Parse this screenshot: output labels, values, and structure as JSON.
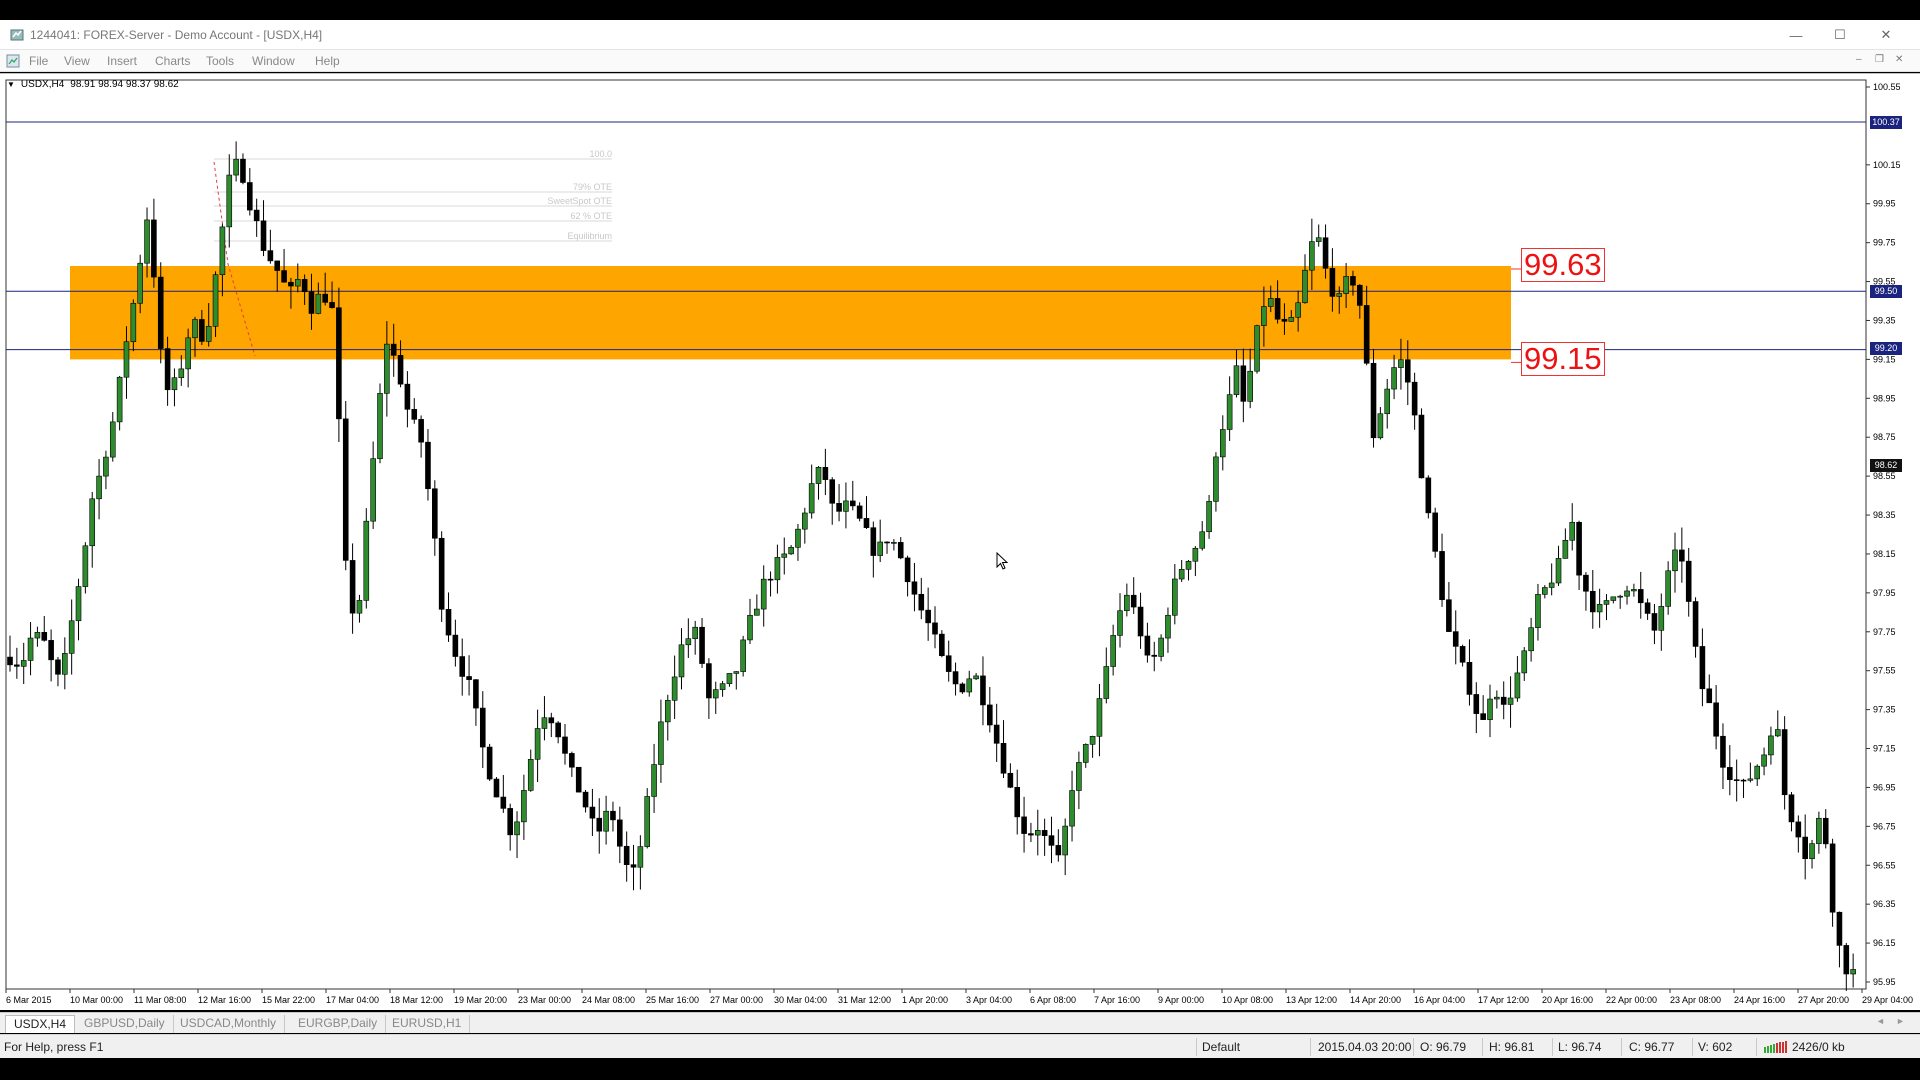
{
  "window": {
    "title": "1244041: FOREX-Server - Demo Account - [USDX,H4]",
    "controls": {
      "minimize": "—",
      "maximize": "☐",
      "close": "✕"
    }
  },
  "menu": {
    "items": [
      "File",
      "View",
      "Insert",
      "Charts",
      "Tools",
      "Window",
      "Help"
    ],
    "mdi_controls": {
      "minimize": "‒",
      "restore": "❐",
      "close": "✕"
    }
  },
  "chart": {
    "symbol_line": "USDX,H4",
    "ohlc_line": "98.91 98.94 98.37 98.62",
    "price_axis": [
      "100.55",
      "100.15",
      "99.95",
      "99.75",
      "99.55",
      "99.35",
      "99.15",
      "98.95",
      "98.75",
      "98.55",
      "98.35",
      "98.15",
      "97.95",
      "97.75",
      "97.55",
      "97.35",
      "97.15",
      "96.95",
      "96.75",
      "96.55",
      "96.35",
      "96.15",
      "95.95"
    ],
    "time_axis": [
      "6 Mar 2015",
      "10 Mar 00:00",
      "11 Mar 08:00",
      "12 Mar 16:00",
      "15 Mar 22:00",
      "17 Mar 04:00",
      "18 Mar 12:00",
      "19 Mar 20:00",
      "23 Mar 00:00",
      "24 Mar 08:00",
      "25 Mar 16:00",
      "27 Mar 00:00",
      "30 Mar 04:00",
      "31 Mar 12:00",
      "1 Apr 20:00",
      "3 Apr 04:00",
      "6 Apr 08:00",
      "7 Apr 16:00",
      "9 Apr 00:00",
      "10 Apr 08:00",
      "13 Apr 12:00",
      "14 Apr 20:00",
      "16 Apr 04:00",
      "17 Apr 12:00",
      "20 Apr 16:00",
      "22 Apr 00:00",
      "23 Apr 08:00",
      "24 Apr 16:00",
      "27 Apr 20:00",
      "29 Apr 04:00"
    ],
    "hlines": [
      {
        "price": 100.37,
        "label": "100.37"
      },
      {
        "price": 99.5,
        "label": "99.50"
      },
      {
        "price": 99.2,
        "label": "99.20"
      }
    ],
    "current_price": {
      "price": 98.62,
      "label": "98.62"
    },
    "zone": {
      "top": 99.63,
      "bottom": 99.15,
      "top_label": "99.63",
      "bottom_label": "99.15",
      "color": "#FFA500"
    },
    "fib_labels": [
      "100.0",
      "79% OTE",
      "SweetSpot OTE",
      "62 % OTE",
      "Equilibrium"
    ],
    "bull_color": "#2e8b2e",
    "bear_color": "#000000"
  },
  "tabs": [
    "USDX,H4",
    "GBPUSD,Daily",
    "USDCAD,Monthly",
    "EURGBP,Daily",
    "EURUSD,H1"
  ],
  "status": {
    "help": "For Help, press F1",
    "profile": "Default",
    "datetime": "2015.04.03 20:00",
    "open": "O: 96.79",
    "high": "H: 96.81",
    "low": "L: 96.74",
    "close": "C: 96.77",
    "volume": "V: 602",
    "traffic": "2426/0 kb"
  }
}
